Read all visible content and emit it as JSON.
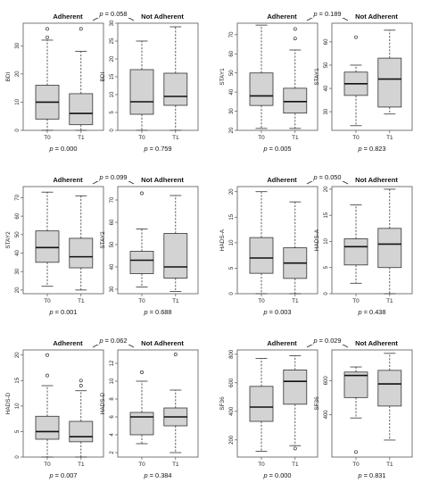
{
  "chart_data": [
    {
      "type": "boxplot",
      "measure": "BDI",
      "between_p": "0.058",
      "groups": [
        {
          "label": "Adherent",
          "ylabel": "BDI",
          "yticks": [
            0,
            10,
            20,
            30
          ],
          "ylim": [
            0,
            38
          ],
          "p": "0.000",
          "categories": [
            "T0",
            "T1"
          ],
          "boxes": [
            {
              "min": 0,
              "q1": 4,
              "median": 10,
              "q3": 16,
              "max": 32,
              "outliers": [
                33,
                36
              ]
            },
            {
              "min": 0,
              "q1": 2,
              "median": 6,
              "q3": 13,
              "max": 28,
              "outliers": [
                36
              ]
            }
          ]
        },
        {
          "label": "Not Adherent",
          "ylabel": "BDI",
          "yticks": [
            0,
            5,
            10,
            15,
            20,
            25,
            30
          ],
          "ylim": [
            0,
            30
          ],
          "p": "0.759",
          "categories": [
            "T0",
            "T1"
          ],
          "boxes": [
            {
              "min": 0,
              "q1": 4.5,
              "median": 8,
              "q3": 17,
              "max": 25,
              "outliers": []
            },
            {
              "min": 0,
              "q1": 7,
              "median": 9.5,
              "q3": 16,
              "max": 29,
              "outliers": []
            }
          ]
        }
      ]
    },
    {
      "type": "boxplot",
      "measure": "STAY1",
      "between_p": "0.189",
      "groups": [
        {
          "label": "Adherent",
          "ylabel": "STAY1",
          "yticks": [
            20,
            30,
            40,
            50,
            60,
            70
          ],
          "ylim": [
            20,
            76
          ],
          "p": "0.005",
          "categories": [
            "T0",
            "T1"
          ],
          "boxes": [
            {
              "min": 21,
              "q1": 33,
              "median": 38,
              "q3": 50,
              "max": 75,
              "outliers": []
            },
            {
              "min": 21,
              "q1": 29,
              "median": 35,
              "q3": 42,
              "max": 62,
              "outliers": [
                68,
                73
              ]
            }
          ]
        },
        {
          "label": "Not Adherent",
          "ylabel": "STAY1",
          "yticks": [
            30,
            40,
            50,
            60
          ],
          "ylim": [
            22,
            68
          ],
          "p": "0.823",
          "categories": [
            "T0",
            "T1"
          ],
          "boxes": [
            {
              "min": 24,
              "q1": 37,
              "median": 42,
              "q3": 47,
              "max": 50,
              "outliers": [
                62
              ]
            },
            {
              "min": 29,
              "q1": 32,
              "median": 44,
              "q3": 53,
              "max": 65,
              "outliers": []
            }
          ]
        }
      ]
    },
    {
      "type": "boxplot",
      "measure": "STAY2",
      "between_p": "0.099",
      "groups": [
        {
          "label": "Adherent",
          "ylabel": "STAY2",
          "yticks": [
            20,
            30,
            40,
            50,
            60,
            70
          ],
          "ylim": [
            18,
            76
          ],
          "p": "0.001",
          "categories": [
            "T0",
            "T1"
          ],
          "boxes": [
            {
              "min": 22,
              "q1": 35,
              "median": 43,
              "q3": 52,
              "max": 73,
              "outliers": []
            },
            {
              "min": 20,
              "q1": 32,
              "median": 38,
              "q3": 48,
              "max": 71,
              "outliers": []
            }
          ]
        },
        {
          "label": "Not Adherent",
          "ylabel": "STAY2",
          "yticks": [
            30,
            40,
            50,
            60,
            70
          ],
          "ylim": [
            28,
            76
          ],
          "p": "0.688",
          "categories": [
            "T0",
            "T1"
          ],
          "boxes": [
            {
              "min": 31,
              "q1": 37,
              "median": 43,
              "q3": 47,
              "max": 57,
              "outliers": [
                73
              ]
            },
            {
              "min": 29,
              "q1": 35,
              "median": 40,
              "q3": 55,
              "max": 72,
              "outliers": []
            }
          ]
        }
      ]
    },
    {
      "type": "boxplot",
      "measure": "HADS-A",
      "between_p": "0.050",
      "groups": [
        {
          "label": "Adherent",
          "ylabel": "HADS-A",
          "yticks": [
            0,
            5,
            10,
            15,
            20
          ],
          "ylim": [
            0,
            21
          ],
          "p": "0.003",
          "categories": [
            "T0",
            "T1"
          ],
          "boxes": [
            {
              "min": 0,
              "q1": 4,
              "median": 7,
              "q3": 11,
              "max": 20,
              "outliers": []
            },
            {
              "min": 0,
              "q1": 3,
              "median": 6,
              "q3": 9,
              "max": 18,
              "outliers": []
            }
          ]
        },
        {
          "label": "Not Adherent",
          "ylabel": "HADS-A",
          "yticks": [
            0,
            5,
            10,
            15,
            20
          ],
          "ylim": [
            0,
            20.5
          ],
          "p": "0.438",
          "categories": [
            "T0",
            "T1"
          ],
          "boxes": [
            {
              "min": 2,
              "q1": 5.5,
              "median": 9,
              "q3": 10.5,
              "max": 17,
              "outliers": []
            },
            {
              "min": 0,
              "q1": 5,
              "median": 9.5,
              "q3": 12.5,
              "max": 20,
              "outliers": []
            }
          ]
        }
      ]
    },
    {
      "type": "boxplot",
      "measure": "HADS-D",
      "between_p": "0.062",
      "groups": [
        {
          "label": "Adherent",
          "ylabel": "HADS-D",
          "yticks": [
            0,
            5,
            10,
            15,
            20
          ],
          "ylim": [
            0,
            21
          ],
          "p": "0.007",
          "categories": [
            "T0",
            "T1"
          ],
          "boxes": [
            {
              "min": 0,
              "q1": 3.5,
              "median": 5,
              "q3": 8,
              "max": 14,
              "outliers": [
                16,
                20
              ]
            },
            {
              "min": 0,
              "q1": 3,
              "median": 4,
              "q3": 7,
              "max": 13,
              "outliers": [
                14,
                15
              ]
            }
          ]
        },
        {
          "label": "Not Adherent",
          "ylabel": "HADS-D",
          "yticks": [
            2,
            4,
            6,
            8,
            10,
            12
          ],
          "ylim": [
            1.5,
            13.5
          ],
          "p": "0.384",
          "categories": [
            "T0",
            "T1"
          ],
          "boxes": [
            {
              "min": 3,
              "q1": 4,
              "median": 6,
              "q3": 6.5,
              "max": 10,
              "outliers": [
                11
              ]
            },
            {
              "min": 2,
              "q1": 5,
              "median": 6,
              "q3": 7,
              "max": 9,
              "outliers": [
                13
              ]
            }
          ]
        }
      ]
    },
    {
      "type": "boxplot",
      "measure": "SF36",
      "between_p": "0.029",
      "groups": [
        {
          "label": "Adherent",
          "ylabel": "SF36",
          "yticks": [
            200,
            400,
            600,
            800
          ],
          "ylim": [
            80,
            830
          ],
          "p": "0.000",
          "categories": [
            "T0",
            "T1"
          ],
          "boxes": [
            {
              "min": 120,
              "q1": 330,
              "median": 430,
              "q3": 575,
              "max": 770,
              "outliers": []
            },
            {
              "min": 160,
              "q1": 450,
              "median": 610,
              "q3": 690,
              "max": 790,
              "outliers": [
                140
              ]
            }
          ]
        },
        {
          "label": "Not Adherent",
          "ylabel": "SF36",
          "yticks": [
            400,
            600
          ],
          "ylim": [
            150,
            780
          ],
          "p": "0.831",
          "categories": [
            "T0",
            "T1"
          ],
          "boxes": [
            {
              "min": 380,
              "q1": 500,
              "median": 630,
              "q3": 650,
              "max": 680,
              "outliers": [
                180
              ]
            },
            {
              "min": 250,
              "q1": 450,
              "median": 580,
              "q3": 660,
              "max": 760,
              "outliers": []
            }
          ]
        }
      ]
    }
  ]
}
